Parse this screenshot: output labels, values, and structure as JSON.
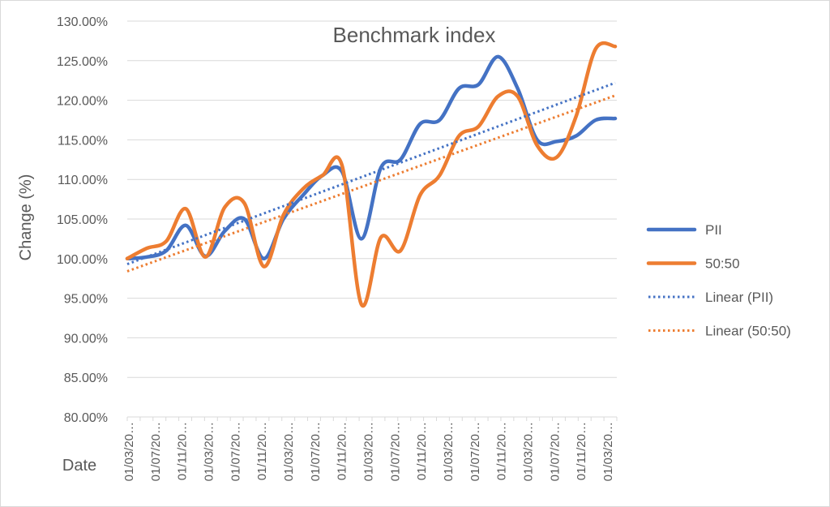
{
  "chart_data": {
    "type": "line",
    "title": "Benchmark index",
    "xlabel": "Date",
    "ylabel": "Change (%)",
    "ylim": [
      80,
      130
    ],
    "y_tick_values": [
      80,
      85,
      90,
      95,
      100,
      105,
      110,
      115,
      120,
      125,
      130
    ],
    "y_tick_labels": [
      "80.00%",
      "85.00%",
      "90.00%",
      "95.00%",
      "100.00%",
      "105.00%",
      "110.00%",
      "115.00%",
      "120.00%",
      "125.00%",
      "130.00%"
    ],
    "x_tick_labels": [
      "01/03/20…",
      "01/07/20…",
      "01/11/20…",
      "01/03/20…",
      "01/07/20…",
      "01/11/20…",
      "01/03/20…",
      "01/07/20…",
      "01/11/20…",
      "01/03/20…",
      "01/07/20…",
      "01/11/20…",
      "01/03/20…",
      "01/07/20…",
      "01/11/20…",
      "01/03/20…",
      "01/07/20…",
      "01/11/20…",
      "01/03/20…"
    ],
    "grid": "horizontal",
    "legend_position": "right",
    "series": [
      {
        "name": "PII",
        "color": "#4472c4",
        "style": "solid",
        "values": [
          100,
          100.2,
          101,
          104.2,
          100.3,
          103.5,
          105,
          100,
          105,
          108,
          110.5,
          111,
          102.5,
          111.5,
          112.5,
          117,
          117.5,
          121.5,
          122,
          125.5,
          121.5,
          115,
          114.8,
          115.5,
          117.5,
          117.7
        ]
      },
      {
        "name": "50:50",
        "color": "#ed7d31",
        "style": "solid",
        "values": [
          100,
          101.3,
          102.2,
          106.3,
          100.2,
          106.5,
          107,
          99,
          105.5,
          108.8,
          110.5,
          111.8,
          94.2,
          102.7,
          101,
          108,
          110.5,
          115.5,
          116.7,
          120.5,
          120.5,
          114.3,
          112.8,
          118,
          126.5,
          126.8
        ]
      },
      {
        "name": "Linear (PII)",
        "color": "#4472c4",
        "style": "dotted",
        "values": [
          99.3,
          122.2
        ]
      },
      {
        "name": "Linear (50:50)",
        "color": "#ed7d31",
        "style": "dotted",
        "values": [
          98.4,
          120.6
        ]
      }
    ]
  }
}
